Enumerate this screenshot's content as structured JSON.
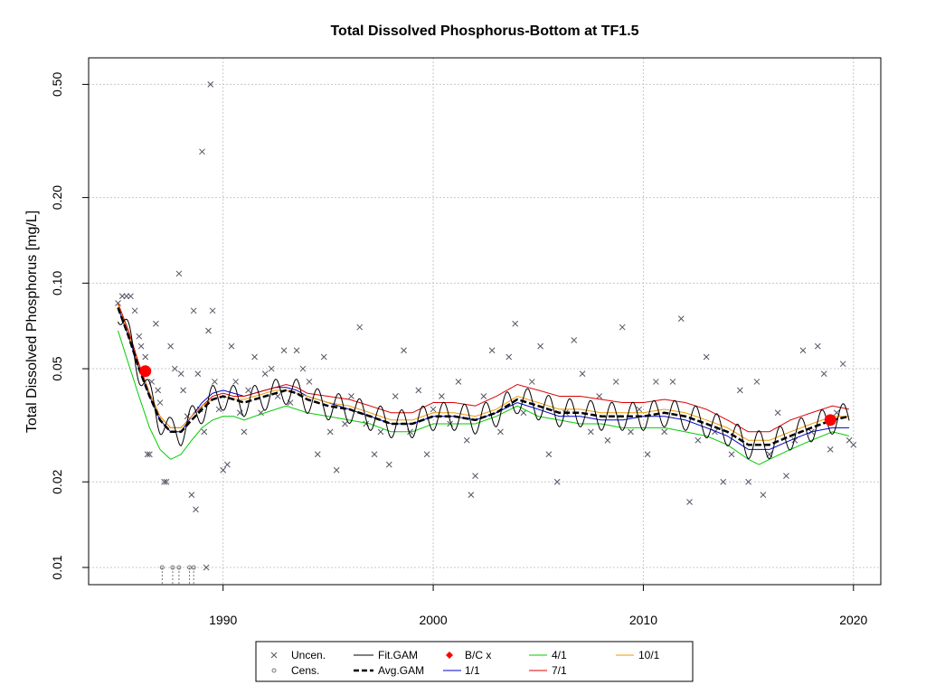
{
  "chart_data": {
    "type": "scatter",
    "title": "Total Dissolved Phosphorus-Bottom at TF1.5",
    "xlabel": "",
    "ylabel": "Total Dissolved Phosphorus [mg/L]",
    "yscale": "log",
    "xlim": [
      1983.6,
      2021.3
    ],
    "ylim": [
      0.0087,
      0.62
    ],
    "x_ticks": [
      1990,
      2000,
      2010,
      2020
    ],
    "y_ticks": [
      0.01,
      0.02,
      0.05,
      0.1,
      0.2,
      0.5
    ],
    "x_tick_labels": [
      "1990",
      "2000",
      "2010",
      "2020"
    ],
    "y_tick_labels": [
      "0.01",
      "0.02",
      "0.05",
      "0.10",
      "0.20",
      "0.50"
    ],
    "grid": true,
    "legend_position": "bottom",
    "colors": {
      "uncensored": "#555566",
      "censored": "#777777",
      "fit_gam": "#000000",
      "avg_gam": "#000000",
      "bc_point": "#ff0000",
      "d1_1": "#0000cc",
      "d4_1": "#00cc00",
      "d7_1": "#dd0000",
      "d10_1": "#ee9900"
    },
    "legend": {
      "uncen": "Uncen.",
      "cens": "Cens.",
      "fit": "Fit.GAM",
      "avg": "Avg.GAM",
      "bc": "B/C x",
      "d1": "1/1",
      "d4": "4/1",
      "d7": "7/1",
      "d10": "10/1"
    },
    "bc_points": [
      [
        1986.3,
        0.049
      ],
      [
        2018.9,
        0.033
      ]
    ],
    "censored_points": [
      [
        1987.1,
        0.01
      ],
      [
        1987.6,
        0.01
      ],
      [
        1987.9,
        0.01
      ],
      [
        1988.4,
        0.01
      ],
      [
        1988.6,
        0.01
      ]
    ],
    "uncensored_points": [
      [
        1985.0,
        0.085
      ],
      [
        1985.2,
        0.09
      ],
      [
        1985.4,
        0.09
      ],
      [
        1985.6,
        0.09
      ],
      [
        1985.8,
        0.08
      ],
      [
        1986.0,
        0.065
      ],
      [
        1986.1,
        0.06
      ],
      [
        1986.3,
        0.055
      ],
      [
        1986.4,
        0.025
      ],
      [
        1986.5,
        0.025
      ],
      [
        1986.6,
        0.045
      ],
      [
        1986.8,
        0.072
      ],
      [
        1986.9,
        0.042
      ],
      [
        1987.0,
        0.038
      ],
      [
        1987.2,
        0.02
      ],
      [
        1987.3,
        0.02
      ],
      [
        1987.5,
        0.06
      ],
      [
        1987.7,
        0.05
      ],
      [
        1987.9,
        0.108
      ],
      [
        1988.0,
        0.048
      ],
      [
        1988.1,
        0.042
      ],
      [
        1988.3,
        0.034
      ],
      [
        1988.5,
        0.018
      ],
      [
        1988.6,
        0.08
      ],
      [
        1988.7,
        0.016
      ],
      [
        1988.8,
        0.048
      ],
      [
        1988.9,
        0.036
      ],
      [
        1989.0,
        0.29
      ],
      [
        1989.1,
        0.03
      ],
      [
        1989.2,
        0.01
      ],
      [
        1989.3,
        0.068
      ],
      [
        1989.4,
        0.5
      ],
      [
        1989.5,
        0.08
      ],
      [
        1989.6,
        0.045
      ],
      [
        1989.8,
        0.036
      ],
      [
        1990.0,
        0.022
      ],
      [
        1990.2,
        0.023
      ],
      [
        1990.4,
        0.06
      ],
      [
        1990.6,
        0.045
      ],
      [
        1990.8,
        0.035
      ],
      [
        1991.0,
        0.03
      ],
      [
        1991.2,
        0.042
      ],
      [
        1991.5,
        0.055
      ],
      [
        1991.8,
        0.035
      ],
      [
        1992.0,
        0.048
      ],
      [
        1992.3,
        0.05
      ],
      [
        1992.6,
        0.04
      ],
      [
        1992.9,
        0.058
      ],
      [
        1993.2,
        0.038
      ],
      [
        1993.5,
        0.058
      ],
      [
        1993.8,
        0.05
      ],
      [
        1994.1,
        0.045
      ],
      [
        1994.5,
        0.025
      ],
      [
        1994.8,
        0.055
      ],
      [
        1995.1,
        0.03
      ],
      [
        1995.4,
        0.022
      ],
      [
        1995.8,
        0.032
      ],
      [
        1996.1,
        0.04
      ],
      [
        1996.5,
        0.07
      ],
      [
        1996.8,
        0.032
      ],
      [
        1997.2,
        0.025
      ],
      [
        1997.5,
        0.03
      ],
      [
        1997.9,
        0.023
      ],
      [
        1998.2,
        0.04
      ],
      [
        1998.6,
        0.058
      ],
      [
        1998.9,
        0.03
      ],
      [
        1999.3,
        0.042
      ],
      [
        1999.7,
        0.025
      ],
      [
        2000.0,
        0.036
      ],
      [
        2000.4,
        0.04
      ],
      [
        2000.8,
        0.032
      ],
      [
        2001.2,
        0.045
      ],
      [
        2001.6,
        0.028
      ],
      [
        2001.8,
        0.018
      ],
      [
        2002.0,
        0.021
      ],
      [
        2002.4,
        0.04
      ],
      [
        2002.8,
        0.058
      ],
      [
        2003.2,
        0.03
      ],
      [
        2003.6,
        0.055
      ],
      [
        2003.9,
        0.072
      ],
      [
        2004.3,
        0.035
      ],
      [
        2004.7,
        0.045
      ],
      [
        2005.1,
        0.06
      ],
      [
        2005.5,
        0.025
      ],
      [
        2005.9,
        0.02
      ],
      [
        2006.3,
        0.035
      ],
      [
        2006.7,
        0.063
      ],
      [
        2007.1,
        0.048
      ],
      [
        2007.5,
        0.03
      ],
      [
        2007.9,
        0.04
      ],
      [
        2008.3,
        0.028
      ],
      [
        2008.7,
        0.045
      ],
      [
        2009.0,
        0.07
      ],
      [
        2009.4,
        0.03
      ],
      [
        2009.8,
        0.036
      ],
      [
        2010.2,
        0.025
      ],
      [
        2010.6,
        0.045
      ],
      [
        2011.0,
        0.03
      ],
      [
        2011.4,
        0.045
      ],
      [
        2011.8,
        0.075
      ],
      [
        2012.2,
        0.017
      ],
      [
        2012.6,
        0.028
      ],
      [
        2013.0,
        0.055
      ],
      [
        2013.4,
        0.03
      ],
      [
        2013.8,
        0.02
      ],
      [
        2014.2,
        0.025
      ],
      [
        2014.6,
        0.042
      ],
      [
        2015.0,
        0.02
      ],
      [
        2015.4,
        0.045
      ],
      [
        2015.7,
        0.018
      ],
      [
        2016.0,
        0.025
      ],
      [
        2016.4,
        0.035
      ],
      [
        2016.8,
        0.021
      ],
      [
        2017.2,
        0.028
      ],
      [
        2017.6,
        0.058
      ],
      [
        2018.0,
        0.03
      ],
      [
        2018.3,
        0.06
      ],
      [
        2018.6,
        0.048
      ],
      [
        2018.9,
        0.026
      ],
      [
        2019.2,
        0.035
      ],
      [
        2019.5,
        0.052
      ],
      [
        2019.8,
        0.028
      ],
      [
        2020.0,
        0.027
      ]
    ],
    "series": [
      {
        "name": "Avg.GAM",
        "x": [
          1985.0,
          1985.5,
          1986.0,
          1986.5,
          1987.0,
          1987.5,
          1988.0,
          1988.5,
          1989.0,
          1989.5,
          1990.0,
          1990.5,
          1991.0,
          1991.5,
          1992.0,
          1992.5,
          1993.0,
          1993.5,
          1994.0,
          1995.0,
          1996.0,
          1997.0,
          1998.0,
          1999.0,
          2000.0,
          2001.0,
          2002.0,
          2003.0,
          2004.0,
          2005.0,
          2006.0,
          2007.0,
          2008.0,
          2009.0,
          2010.0,
          2011.0,
          2012.0,
          2013.0,
          2014.0,
          2015.0,
          2015.5,
          2016.0,
          2017.0,
          2018.0,
          2019.0,
          2019.8
        ],
        "values": [
          0.082,
          0.065,
          0.05,
          0.04,
          0.033,
          0.03,
          0.03,
          0.033,
          0.036,
          0.039,
          0.04,
          0.039,
          0.038,
          0.039,
          0.04,
          0.041,
          0.042,
          0.041,
          0.039,
          0.037,
          0.036,
          0.034,
          0.032,
          0.032,
          0.034,
          0.034,
          0.033,
          0.035,
          0.039,
          0.037,
          0.035,
          0.035,
          0.034,
          0.034,
          0.034,
          0.035,
          0.034,
          0.032,
          0.03,
          0.027,
          0.027,
          0.027,
          0.029,
          0.031,
          0.033,
          0.034
        ]
      },
      {
        "name": "1/1",
        "x": [
          1985.0,
          1985.5,
          1986.0,
          1986.5,
          1987.0,
          1987.5,
          1988.0,
          1988.5,
          1989.0,
          1989.5,
          1990.0,
          1990.5,
          1991.0,
          1991.5,
          1992.0,
          1992.5,
          1993.0,
          1993.5,
          1994.0,
          1995.0,
          1996.0,
          1997.0,
          1998.0,
          1999.0,
          2000.0,
          2001.0,
          2002.0,
          2003.0,
          2004.0,
          2005.0,
          2006.0,
          2007.0,
          2008.0,
          2009.0,
          2010.0,
          2011.0,
          2012.0,
          2013.0,
          2014.0,
          2015.0,
          2015.5,
          2016.0,
          2017.0,
          2018.0,
          2019.0,
          2019.8
        ],
        "values": [
          0.082,
          0.065,
          0.05,
          0.04,
          0.033,
          0.03,
          0.03,
          0.034,
          0.038,
          0.041,
          0.042,
          0.041,
          0.04,
          0.041,
          0.042,
          0.043,
          0.043,
          0.042,
          0.04,
          0.038,
          0.036,
          0.034,
          0.032,
          0.032,
          0.034,
          0.034,
          0.033,
          0.035,
          0.038,
          0.036,
          0.034,
          0.034,
          0.033,
          0.033,
          0.034,
          0.034,
          0.033,
          0.031,
          0.029,
          0.026,
          0.026,
          0.026,
          0.028,
          0.03,
          0.031,
          0.031
        ]
      },
      {
        "name": "4/1",
        "x": [
          1985.0,
          1985.5,
          1986.0,
          1986.5,
          1987.0,
          1987.5,
          1988.0,
          1988.5,
          1989.0,
          1989.5,
          1990.0,
          1990.5,
          1991.0,
          1991.5,
          1992.0,
          1992.5,
          1993.0,
          1993.5,
          1994.0,
          1995.0,
          1996.0,
          1997.0,
          1998.0,
          1999.0,
          2000.0,
          2001.0,
          2002.0,
          2003.0,
          2004.0,
          2005.0,
          2006.0,
          2007.0,
          2008.0,
          2009.0,
          2010.0,
          2011.0,
          2012.0,
          2013.0,
          2014.0,
          2015.0,
          2015.5,
          2016.0,
          2017.0,
          2018.0,
          2019.0,
          2019.8
        ],
        "values": [
          0.068,
          0.052,
          0.04,
          0.031,
          0.026,
          0.024,
          0.025,
          0.028,
          0.031,
          0.033,
          0.034,
          0.034,
          0.033,
          0.034,
          0.035,
          0.036,
          0.037,
          0.036,
          0.035,
          0.034,
          0.033,
          0.032,
          0.03,
          0.03,
          0.032,
          0.032,
          0.032,
          0.034,
          0.037,
          0.034,
          0.033,
          0.032,
          0.032,
          0.031,
          0.031,
          0.031,
          0.03,
          0.029,
          0.027,
          0.024,
          0.023,
          0.024,
          0.026,
          0.028,
          0.03,
          0.029
        ]
      },
      {
        "name": "7/1",
        "x": [
          1985.0,
          1985.5,
          1986.0,
          1986.5,
          1987.0,
          1987.5,
          1988.0,
          1988.5,
          1989.0,
          1989.5,
          1990.0,
          1990.5,
          1991.0,
          1991.5,
          1992.0,
          1992.5,
          1993.0,
          1993.5,
          1994.0,
          1995.0,
          1996.0,
          1997.0,
          1998.0,
          1999.0,
          2000.0,
          2001.0,
          2002.0,
          2003.0,
          2004.0,
          2005.0,
          2006.0,
          2007.0,
          2008.0,
          2009.0,
          2010.0,
          2011.0,
          2012.0,
          2013.0,
          2014.0,
          2015.0,
          2015.5,
          2016.0,
          2017.0,
          2018.0,
          2019.0,
          2019.8
        ],
        "values": [
          0.085,
          0.068,
          0.052,
          0.041,
          0.034,
          0.031,
          0.031,
          0.034,
          0.037,
          0.04,
          0.041,
          0.04,
          0.04,
          0.041,
          0.042,
          0.043,
          0.044,
          0.043,
          0.041,
          0.04,
          0.039,
          0.037,
          0.035,
          0.035,
          0.038,
          0.038,
          0.037,
          0.04,
          0.044,
          0.042,
          0.04,
          0.04,
          0.039,
          0.038,
          0.038,
          0.039,
          0.038,
          0.036,
          0.033,
          0.03,
          0.03,
          0.03,
          0.033,
          0.035,
          0.037,
          0.036
        ]
      },
      {
        "name": "10/1",
        "x": [
          1985.0,
          1985.5,
          1986.0,
          1986.5,
          1987.0,
          1987.5,
          1988.0,
          1988.5,
          1989.0,
          1989.5,
          1990.0,
          1990.5,
          1991.0,
          1991.5,
          1992.0,
          1992.5,
          1993.0,
          1993.5,
          1994.0,
          1995.0,
          1996.0,
          1997.0,
          1998.0,
          1999.0,
          2000.0,
          2001.0,
          2002.0,
          2003.0,
          2004.0,
          2005.0,
          2006.0,
          2007.0,
          2008.0,
          2009.0,
          2010.0,
          2011.0,
          2012.0,
          2013.0,
          2014.0,
          2015.0,
          2015.5,
          2016.0,
          2017.0,
          2018.0,
          2019.0,
          2019.8
        ],
        "values": [
          0.084,
          0.066,
          0.051,
          0.041,
          0.034,
          0.031,
          0.031,
          0.034,
          0.037,
          0.039,
          0.04,
          0.039,
          0.039,
          0.04,
          0.041,
          0.042,
          0.042,
          0.041,
          0.04,
          0.038,
          0.037,
          0.035,
          0.033,
          0.033,
          0.035,
          0.035,
          0.034,
          0.036,
          0.04,
          0.038,
          0.036,
          0.036,
          0.035,
          0.035,
          0.035,
          0.036,
          0.035,
          0.033,
          0.031,
          0.028,
          0.028,
          0.028,
          0.03,
          0.032,
          0.034,
          0.034
        ]
      }
    ],
    "fit_gam": {
      "name": "Fit.GAM",
      "amplitude_factor": 1.12
    }
  }
}
